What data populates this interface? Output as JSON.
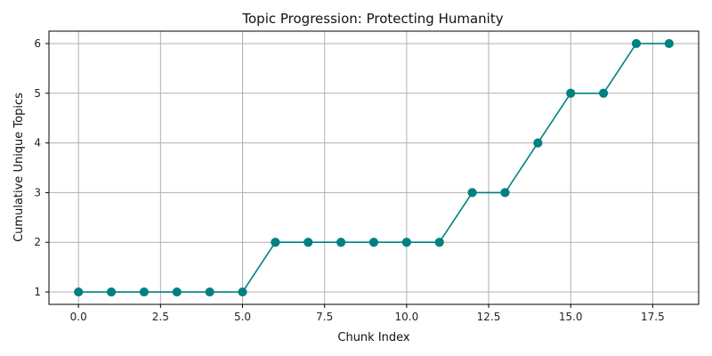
{
  "chart_data": {
    "type": "line",
    "title": "Topic Progression: Protecting Humanity",
    "xlabel": "Chunk Index",
    "ylabel": "Cumulative Unique Topics",
    "x": [
      0,
      1,
      2,
      3,
      4,
      5,
      6,
      7,
      8,
      9,
      10,
      11,
      12,
      13,
      14,
      15,
      16,
      17,
      18
    ],
    "series": [
      {
        "values": [
          1,
          1,
          1,
          1,
          1,
          1,
          2,
          2,
          2,
          2,
          2,
          2,
          3,
          3,
          4,
          5,
          5,
          6,
          6
        ],
        "color": "#008080",
        "marker": "circle"
      }
    ],
    "xlim": [
      -0.9,
      18.9
    ],
    "ylim": [
      0.75,
      6.25
    ],
    "xticks": [
      0,
      2.5,
      5,
      7.5,
      10,
      12.5,
      15,
      17.5
    ],
    "xtick_labels": [
      "0.0",
      "2.5",
      "5.0",
      "7.5",
      "10.0",
      "12.5",
      "15.0",
      "17.5"
    ],
    "yticks": [
      1,
      2,
      3,
      4,
      5,
      6
    ],
    "ytick_labels": [
      "1",
      "2",
      "3",
      "4",
      "5",
      "6"
    ],
    "grid": true,
    "grid_color": "#b0b0b0",
    "legend": "none"
  }
}
